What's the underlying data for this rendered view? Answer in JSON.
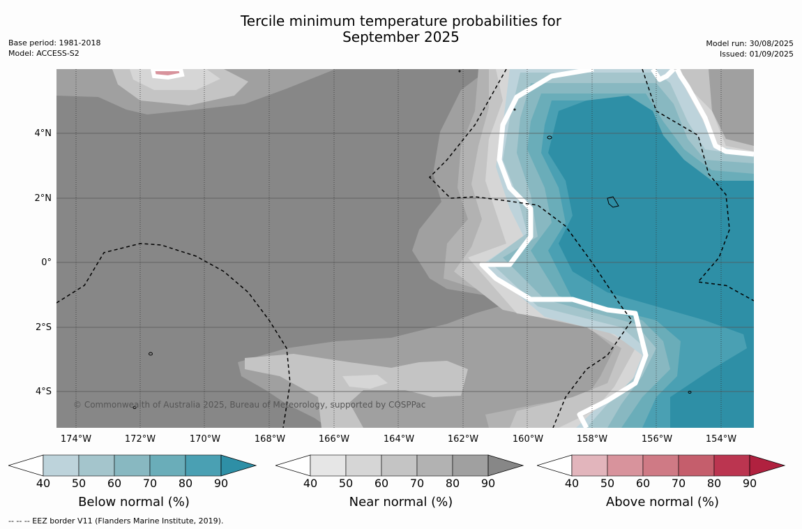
{
  "title_line1": "Tercile minimum temperature probabilities for",
  "title_line2": "September 2025",
  "meta_left": {
    "base_period": "Base period: 1981-2018",
    "model": "Model: ACCESS-S2"
  },
  "meta_right": {
    "model_run": "Model run: 30/08/2025",
    "issued": "Issued: 01/09/2025"
  },
  "copyright": "© Commonwealth of Australia 2025, Bureau of Meteorology, supported by COSPPac",
  "lat_labels": [
    "4°N",
    "2°N",
    "0°",
    "2°S",
    "4°S"
  ],
  "lon_labels": [
    "174°W",
    "172°W",
    "170°W",
    "168°W",
    "166°W",
    "164°W",
    "162°W",
    "160°W",
    "158°W",
    "156°W",
    "154°W"
  ],
  "colorbars": [
    {
      "title": "Below normal (%)",
      "ticks": [
        "40",
        "50",
        "60",
        "70",
        "80",
        "90"
      ],
      "colors": [
        "#bdd3db",
        "#a4c5cc",
        "#88b8c1",
        "#6aadb9",
        "#4aa0b3",
        "#2e8fa6"
      ]
    },
    {
      "title": "Near normal (%)",
      "ticks": [
        "40",
        "50",
        "60",
        "70",
        "80",
        "90"
      ],
      "colors": [
        "#e6e6e6",
        "#d6d6d6",
        "#c4c4c4",
        "#b2b2b2",
        "#a0a0a0",
        "#878787"
      ]
    },
    {
      "title": "Above normal (%)",
      "ticks": [
        "40",
        "50",
        "60",
        "70",
        "80",
        "90"
      ],
      "colors": [
        "#e2b5bc",
        "#d8939c",
        "#cf7a85",
        "#c55e6c",
        "#bb3550",
        "#b0213f"
      ]
    }
  ],
  "footnote": "-- -- -- EEZ border V11 (Flanders Marine Institute, 2019)."
}
